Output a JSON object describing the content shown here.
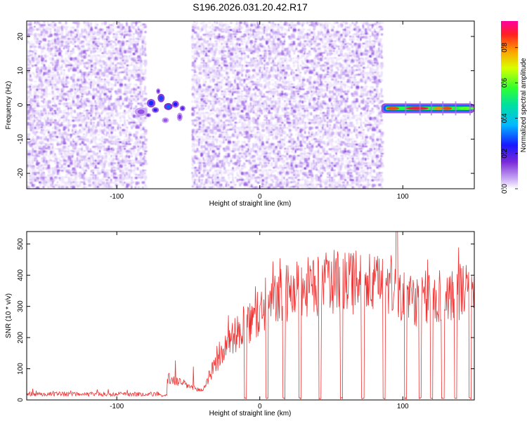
{
  "title": "S196.2026.031.20.42.R17",
  "chart_data": [
    {
      "type": "heatmap",
      "xlabel": "Height of straight line (km)",
      "ylabel": "Frequency (Hz)",
      "xlim": [
        -163,
        150
      ],
      "ylim": [
        -24.5,
        24.5
      ],
      "xticks": [
        -100,
        0,
        100
      ],
      "yticks": [
        -20,
        -10,
        0,
        10,
        20
      ],
      "colorbar": {
        "label": "Normalized spectral amplitude",
        "range": [
          0,
          0.95
        ],
        "ticks": [
          "0.0",
          "0.2",
          "0.4",
          "0.6",
          "0.8"
        ],
        "tick_values": [
          0.0,
          0.2,
          0.4,
          0.6,
          0.8
        ]
      },
      "noise_regions_km": [
        [
          -163,
          -80
        ],
        [
          -48,
          85
        ]
      ],
      "blank_region_km": [
        -80,
        -48
      ],
      "signal_features": [
        {
          "x_range_km": [
            -85,
            -52
          ],
          "freq_hz": 0,
          "amplitude_range": [
            0.1,
            0.3
          ]
        },
        {
          "x_range_km": [
            85,
            150
          ],
          "freq_hz": -1,
          "amplitude_range": [
            0.3,
            0.95
          ]
        }
      ]
    },
    {
      "type": "line",
      "xlabel": "Height of straight line (km)",
      "ylabel": "SNR (10 * v/v)",
      "xlim": [
        -163,
        150
      ],
      "ylim": [
        0,
        540
      ],
      "xticks": [
        -100,
        0,
        100
      ],
      "yticks": [
        0,
        100,
        200,
        300,
        400,
        500
      ],
      "color": "#ee3333",
      "profile_km": [
        -163,
        -70,
        -65,
        -55,
        -45,
        -40,
        -35,
        -30,
        -20,
        -10,
        0,
        10,
        20,
        30,
        40,
        50,
        60,
        70,
        80,
        90,
        100,
        110,
        120,
        130,
        140,
        150
      ],
      "profile_snr": [
        18,
        20,
        70,
        55,
        35,
        30,
        80,
        120,
        200,
        230,
        280,
        320,
        340,
        360,
        360,
        380,
        370,
        380,
        365,
        375,
        330,
        320,
        330,
        340,
        350,
        340
      ],
      "dropouts_km": [
        -10,
        5,
        17,
        28,
        42,
        57,
        72,
        87,
        102,
        112,
        120,
        128,
        137,
        147
      ]
    }
  ]
}
